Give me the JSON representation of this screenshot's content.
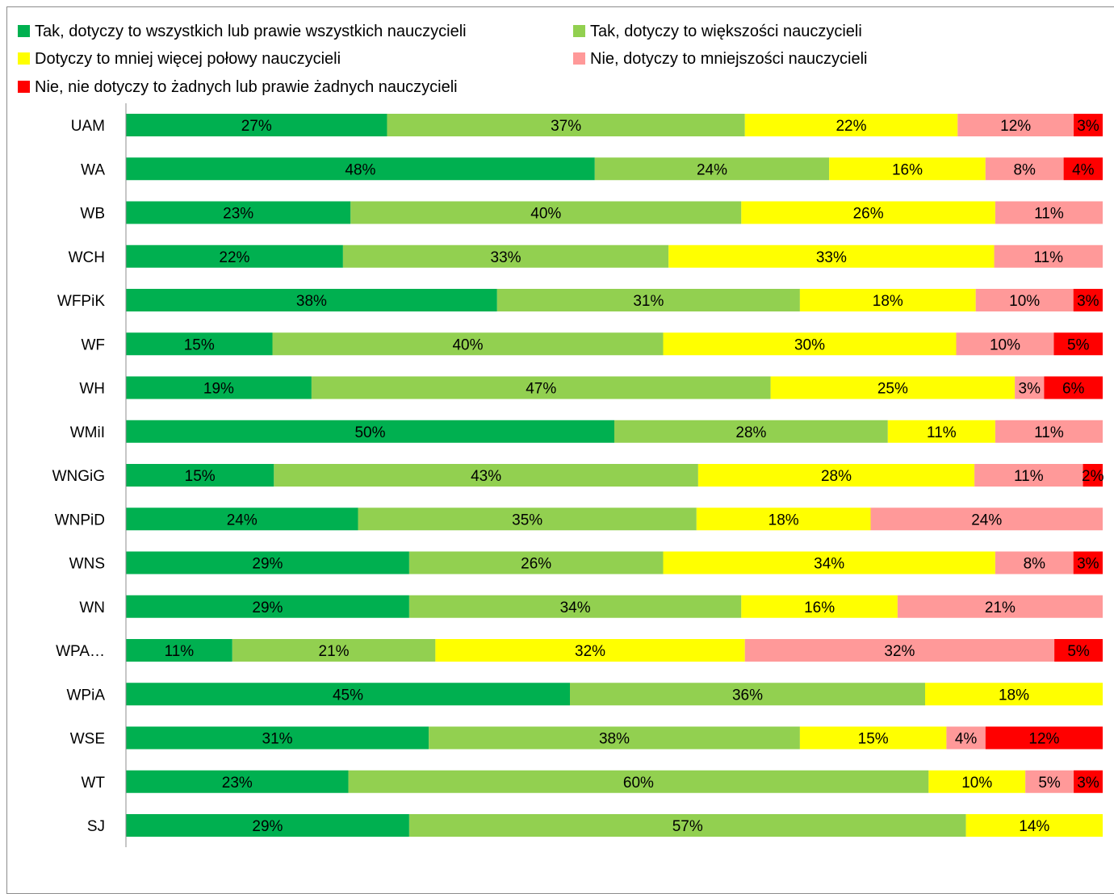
{
  "chart_data": {
    "type": "bar",
    "orientation": "horizontal",
    "stacked": true,
    "percent": true,
    "xlim": [
      0,
      100
    ],
    "grid": false,
    "legend_position": "top",
    "categories": [
      "UAM",
      "WA",
      "WB",
      "WCH",
      "WFPiK",
      "WF",
      "WH",
      "WMiI",
      "WNGiG",
      "WNPiD",
      "WNS",
      "WN",
      "WPA…",
      "WPiA",
      "WSE",
      "WT",
      "SJ"
    ],
    "series": [
      {
        "name": "Tak, dotyczy to wszystkich lub prawie wszystkich nauczycieli",
        "color": "#00b050",
        "values": [
          27,
          48,
          23,
          22,
          38,
          15,
          19,
          50,
          15,
          24,
          29,
          29,
          11,
          45,
          31,
          23,
          29
        ],
        "labels": [
          "27%",
          "48%",
          "23%",
          "22%",
          "38%",
          "15%",
          "19%",
          "50%",
          "15%",
          "24%",
          "29%",
          "29%",
          "11%",
          "45%",
          "31%",
          "23%",
          "29%"
        ]
      },
      {
        "name": "Tak, dotyczy to większości nauczycieli",
        "color": "#92d050",
        "values": [
          37,
          24,
          40,
          33,
          31,
          40,
          47,
          28,
          43,
          35,
          26,
          34,
          21,
          36,
          38,
          60,
          57
        ],
        "labels": [
          "37%",
          "24%",
          "40%",
          "33%",
          "31%",
          "40%",
          "47%",
          "28%",
          "43%",
          "35%",
          "26%",
          "34%",
          "21%",
          "36%",
          "38%",
          "60%",
          "57%"
        ]
      },
      {
        "name": "Dotyczy to mniej więcej połowy nauczycieli",
        "color": "#ffff00",
        "values": [
          22,
          16,
          26,
          33,
          18,
          30,
          25,
          11,
          28,
          18,
          34,
          16,
          32,
          18,
          15,
          10,
          14
        ],
        "labels": [
          "22%",
          "16%",
          "26%",
          "33%",
          "18%",
          "30%",
          "25%",
          "11%",
          "28%",
          "18%",
          "34%",
          "16%",
          "32%",
          "18%",
          "15%",
          "10%",
          "14%"
        ]
      },
      {
        "name": "Nie, dotyczy to mniejszości nauczycieli",
        "color": "#ff9999",
        "values": [
          12,
          8,
          11,
          11,
          10,
          10,
          3,
          11,
          11,
          24,
          8,
          21,
          32,
          0,
          4,
          5,
          0
        ],
        "labels": [
          "12%",
          "8%",
          "11%",
          "11%",
          "10%",
          "10%",
          "3%",
          "11%",
          "11%",
          "24%",
          "8%",
          "21%",
          "32%",
          "",
          "4%",
          "5%",
          ""
        ]
      },
      {
        "name": "Nie, nie dotyczy to żadnych lub prawie żadnych nauczycieli",
        "color": "#ff0000",
        "values": [
          3,
          4,
          0,
          0,
          3,
          5,
          6,
          0,
          2,
          0,
          3,
          0,
          5,
          0,
          12,
          3,
          0
        ],
        "labels": [
          "3%",
          "4%",
          "",
          "",
          "3%",
          "5%",
          "6%",
          "",
          "2%",
          "",
          "3%",
          "",
          "5%",
          "",
          "12%",
          "3%",
          ""
        ]
      }
    ]
  }
}
